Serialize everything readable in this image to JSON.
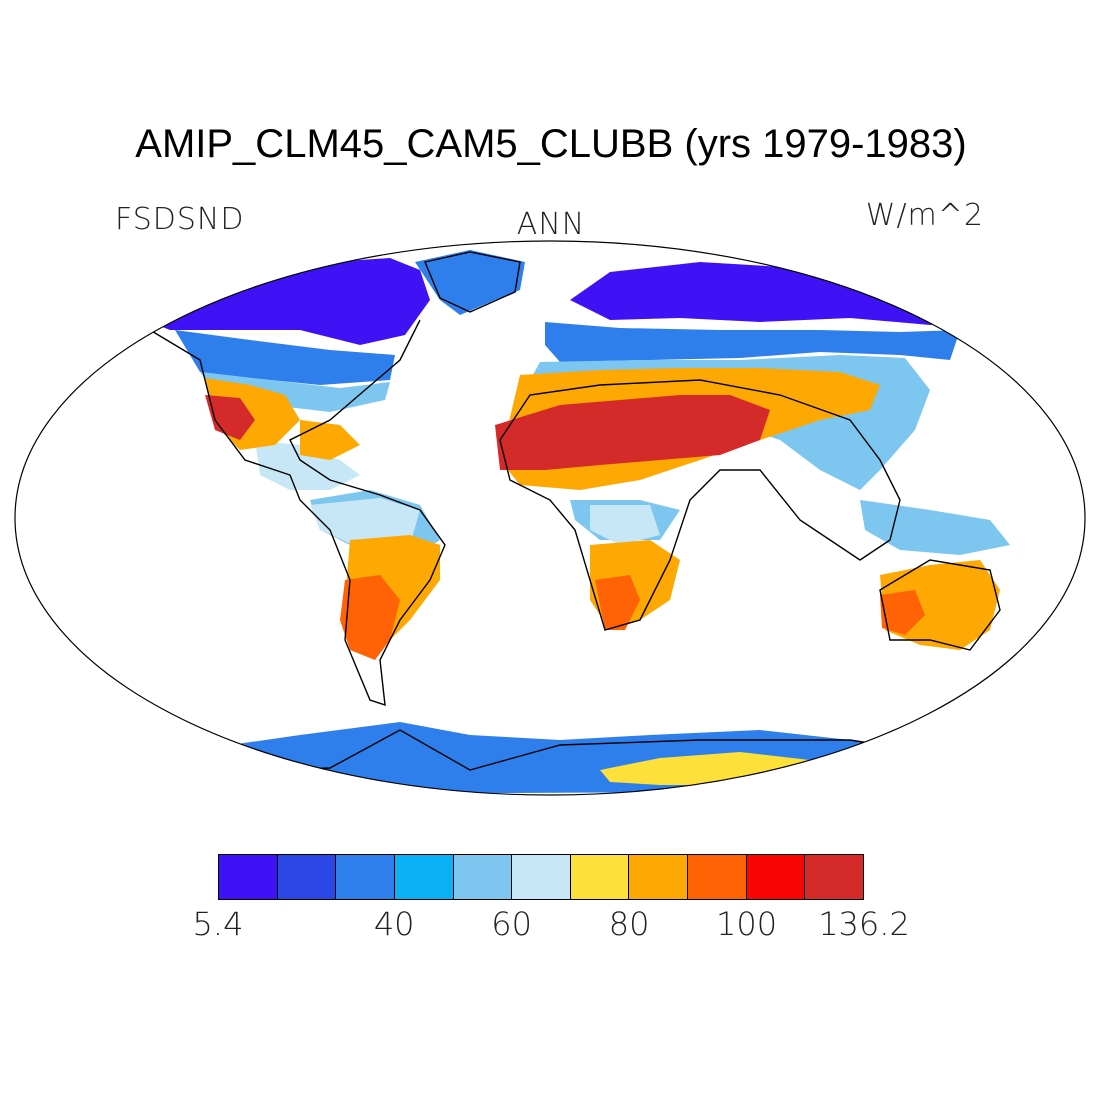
{
  "title": "AMIP_CLM45_CAM5_CLUBB (yrs 1979-1983)",
  "variable": "FSDSND",
  "season": "ANN",
  "units": "W/m^2",
  "colorbar": {
    "colors": [
      "#3f12f5",
      "#2b47e6",
      "#2e7fec",
      "#0ab1f5",
      "#7cc6ef",
      "#c8e7f6",
      "#fde03a",
      "#fda803",
      "#ff6306",
      "#f80505",
      "#d42a2a"
    ],
    "tick_labels": [
      {
        "label": "5.4",
        "index": 0
      },
      {
        "label": "40",
        "index": 3
      },
      {
        "label": "60",
        "index": 5
      },
      {
        "label": "80",
        "index": 7
      },
      {
        "label": "100",
        "index": 9
      },
      {
        "label": "136.2",
        "index": 11
      }
    ]
  },
  "regions": [
    {
      "name": "north-polar-land",
      "level": 0
    },
    {
      "name": "boreal-zone",
      "level": 2
    },
    {
      "name": "mid-latitude-zone",
      "level": 4
    },
    {
      "name": "sahara-arabia",
      "level": 10
    },
    {
      "name": "subtropical-warm",
      "level": 7
    },
    {
      "name": "tropical-forest",
      "level": 5
    },
    {
      "name": "southern-subtropics",
      "level": 8
    },
    {
      "name": "antarctica-coast",
      "level": 2
    },
    {
      "name": "antarctica-interior",
      "level": 6
    }
  ]
}
